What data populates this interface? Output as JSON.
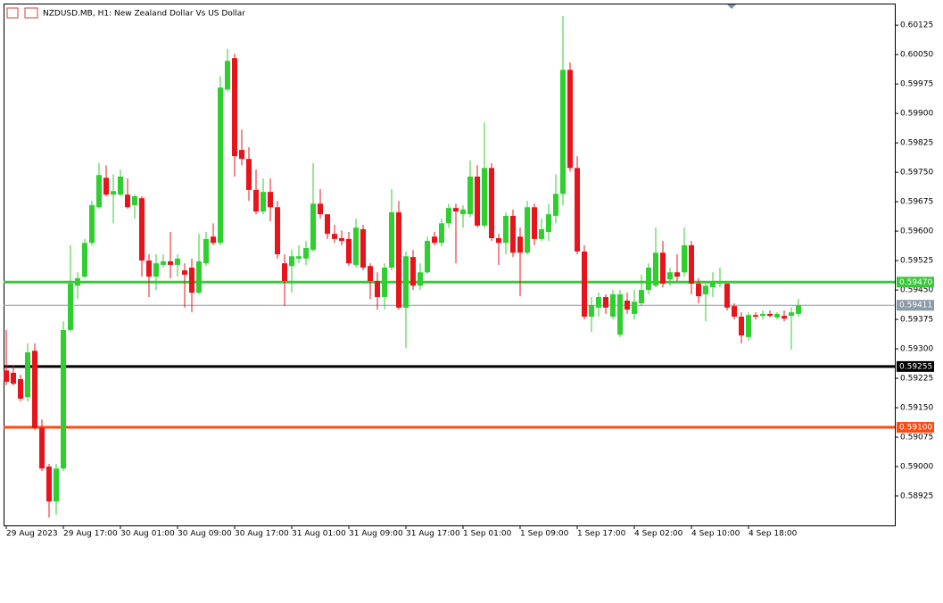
{
  "chart_data": {
    "type": "candlestick",
    "title": "NZDUSD.MB, H1:  New Zealand Dollar Vs US Dollar",
    "up_color": "#2fcf2f",
    "down_color": "#e8141b",
    "categories": [
      "29 Aug 2023",
      null,
      null,
      null,
      null,
      null,
      null,
      null,
      "29 Aug 17:00",
      null,
      null,
      null,
      null,
      null,
      null,
      null,
      "30 Aug 01:00",
      null,
      null,
      null,
      null,
      null,
      null,
      null,
      "30 Aug 09:00",
      null,
      null,
      null,
      null,
      null,
      null,
      null,
      "30 Aug 17:00",
      null,
      null,
      null,
      null,
      null,
      null,
      null,
      "31 Aug 01:00",
      null,
      null,
      null,
      null,
      null,
      null,
      null,
      "31 Aug 09:00",
      null,
      null,
      null,
      null,
      null,
      null,
      null,
      "31 Aug 17:00",
      null,
      null,
      null,
      null,
      null,
      null,
      null,
      "1 Sep 01:00",
      null,
      null,
      null,
      null,
      null,
      null,
      null,
      "1 Sep 09:00",
      null,
      null,
      null,
      null,
      null,
      null,
      null,
      "1 Sep 17:00",
      null,
      null,
      null,
      null,
      null,
      null,
      null,
      "4 Sep 02:00",
      null,
      null,
      null,
      null,
      null,
      null,
      null,
      "4 Sep 10:00",
      null,
      null,
      null,
      null,
      null,
      null,
      null,
      "4 Sep 18:00",
      null,
      null,
      null,
      null,
      null,
      null,
      null
    ],
    "open": [
      0.59245,
      0.59239,
      0.59223,
      0.59177,
      0.59295,
      0.59098,
      0.59,
      0.58911,
      0.58995,
      0.59348,
      0.59461,
      0.59484,
      0.5957,
      0.59661,
      0.59736,
      0.59693,
      0.59693,
      0.59693,
      0.59666,
      0.59684,
      0.59525,
      0.59484,
      0.59514,
      0.59523,
      0.59514,
      0.595,
      0.59507,
      0.59443,
      0.59518,
      0.59586,
      0.5957,
      0.59961,
      0.60041,
      0.59807,
      0.59784,
      0.59705,
      0.5965,
      0.597,
      0.59661,
      0.59518,
      0.59511,
      0.5953,
      0.5953,
      0.59552,
      0.5967,
      0.59643,
      0.59593,
      0.59582,
      0.5958,
      0.59514,
      0.59605,
      0.59511,
      0.59473,
      0.59432,
      0.59507,
      0.59648,
      0.59405,
      0.59534,
      0.59461,
      0.59495,
      0.59586,
      0.5957,
      0.5962,
      0.59659,
      0.59643,
      0.59643,
      0.59739,
      0.59614,
      0.59761,
      0.59582,
      0.5957,
      0.59639,
      0.59586,
      0.59545,
      0.59661,
      0.5958,
      0.59598,
      0.59639,
      0.59695,
      0.60011,
      0.59761,
      0.59548,
      0.59382,
      0.59405,
      0.59432,
      0.59382,
      0.59336,
      0.59423,
      0.59389,
      0.59416,
      0.5945,
      0.59461,
      0.59545,
      0.59477,
      0.59495,
      0.59495,
      0.59564,
      0.59466,
      0.59439,
      0.59457,
      0.59466,
      0.59466,
      0.59409,
      0.59382,
      0.5933,
      0.59386,
      0.59384,
      0.59389,
      0.5938,
      0.59384,
      0.59384,
      0.59389
    ],
    "high": [
      0.59348,
      0.59257,
      0.59234,
      0.59314,
      0.59314,
      0.5912,
      0.59007,
      0.59007,
      0.5937,
      0.59564,
      0.59495,
      0.5958,
      0.59677,
      0.59773,
      0.59768,
      0.59745,
      0.59757,
      0.59734,
      0.59693,
      0.59689,
      0.59541,
      0.59541,
      0.59541,
      0.59598,
      0.59541,
      0.59518,
      0.5953,
      0.59593,
      0.59598,
      0.5962,
      0.59995,
      0.60064,
      0.60052,
      0.59859,
      0.59814,
      0.59757,
      0.59734,
      0.59734,
      0.59677,
      0.59541,
      0.59552,
      0.59564,
      0.59575,
      0.59773,
      0.59707,
      0.59643,
      0.59616,
      0.59602,
      0.59598,
      0.59632,
      0.59616,
      0.59518,
      0.59495,
      0.59518,
      0.59707,
      0.59677,
      0.59548,
      0.59552,
      0.59518,
      0.59586,
      0.59598,
      0.59632,
      0.5967,
      0.5967,
      0.59666,
      0.5978,
      0.59768,
      0.59877,
      0.59773,
      0.59593,
      0.59648,
      0.59655,
      0.59609,
      0.59677,
      0.5967,
      0.59632,
      0.5967,
      0.59745,
      0.60148,
      0.6003,
      0.59791,
      0.59564,
      0.59432,
      0.59443,
      0.59439,
      0.5945,
      0.5945,
      0.59443,
      0.5945,
      0.59489,
      0.59518,
      0.59609,
      0.59575,
      0.59507,
      0.59541,
      0.59609,
      0.59575,
      0.5948,
      0.59466,
      0.59495,
      0.59507,
      0.59466,
      0.59416,
      0.59393,
      0.59393,
      0.59393,
      0.59398,
      0.59398,
      0.59393,
      0.59398,
      0.59405,
      0.59427
    ],
    "low": [
      0.59207,
      0.59207,
      0.59166,
      0.59166,
      0.59093,
      0.58989,
      0.5887,
      0.58877,
      0.58989,
      0.59343,
      0.59427,
      0.5948,
      0.59564,
      0.59657,
      0.59689,
      0.5962,
      0.59689,
      0.59657,
      0.59632,
      0.59484,
      0.59432,
      0.5945,
      0.59507,
      0.5948,
      0.59484,
      0.59405,
      0.59393,
      0.59439,
      0.59511,
      0.59564,
      0.59564,
      0.59957,
      0.59739,
      0.59768,
      0.59677,
      0.59643,
      0.59643,
      0.59625,
      0.5953,
      0.59409,
      0.59443,
      0.59518,
      0.59514,
      0.59548,
      0.59632,
      0.5958,
      0.5957,
      0.59564,
      0.59511,
      0.59507,
      0.595,
      0.59427,
      0.594,
      0.594,
      0.595,
      0.594,
      0.59302,
      0.5945,
      0.5945,
      0.59491,
      0.59564,
      0.59561,
      0.59609,
      0.59518,
      0.59609,
      0.59636,
      0.59609,
      0.59607,
      0.59575,
      0.59514,
      0.59541,
      0.59534,
      0.59434,
      0.59541,
      0.59564,
      0.59575,
      0.59575,
      0.5962,
      0.59666,
      0.59752,
      0.59541,
      0.59375,
      0.59343,
      0.59382,
      0.59389,
      0.59375,
      0.5933,
      0.59389,
      0.59375,
      0.59409,
      0.59439,
      0.59457,
      0.59457,
      0.59461,
      0.59473,
      0.59484,
      0.59439,
      0.59416,
      0.5937,
      0.59432,
      0.59457,
      0.59398,
      0.59375,
      0.59314,
      0.5932,
      0.59375,
      0.59375,
      0.5938,
      0.59375,
      0.5937,
      0.59298,
      0.59382
    ],
    "close": [
      0.59216,
      0.59211,
      0.59173,
      0.59291,
      0.59098,
      0.58995,
      0.58911,
      0.58995,
      0.59348,
      0.59466,
      0.5948,
      0.5957,
      0.59666,
      0.59743,
      0.59693,
      0.59702,
      0.59739,
      0.59661,
      0.59689,
      0.59525,
      0.59484,
      0.59518,
      0.59523,
      0.59514,
      0.5953,
      0.59489,
      0.59443,
      0.59523,
      0.5958,
      0.5957,
      0.59966,
      0.60034,
      0.59791,
      0.59784,
      0.59705,
      0.5965,
      0.597,
      0.59661,
      0.59541,
      0.59473,
      0.59536,
      0.59536,
      0.59557,
      0.5967,
      0.59643,
      0.59593,
      0.5958,
      0.59575,
      0.59518,
      0.59609,
      0.59507,
      0.59473,
      0.59432,
      0.59507,
      0.59648,
      0.59405,
      0.59536,
      0.59461,
      0.59495,
      0.59575,
      0.5957,
      0.5962,
      0.59659,
      0.5965,
      0.59655,
      0.59739,
      0.59614,
      0.59761,
      0.59582,
      0.5957,
      0.59639,
      0.59545,
      0.59545,
      0.59661,
      0.5958,
      0.59605,
      0.59643,
      0.59695,
      0.60011,
      0.59761,
      0.59548,
      0.59382,
      0.59411,
      0.59432,
      0.59405,
      0.59439,
      0.59439,
      0.594,
      0.5942,
      0.5945,
      0.59507,
      0.59545,
      0.59466,
      0.59495,
      0.59484,
      0.59564,
      0.59466,
      0.59434,
      0.59461,
      0.59473,
      0.5947,
      0.59405,
      0.59382,
      0.59334,
      0.59386,
      0.59382,
      0.59389,
      0.59384,
      0.59389,
      0.59377,
      0.59393,
      0.59411
    ],
    "ylim": [
      0.5885,
      0.6018
    ],
    "yticks": [
      0.58925,
      {
        "value": 0.59,
        "label": "0.59000"
      },
      0.59075,
      {
        "value": 0.5915,
        "label": "0.59150"
      },
      0.59225,
      {
        "value": 0.593,
        "label": "0.59300"
      },
      0.59375,
      {
        "value": 0.5945,
        "label": "0.59450"
      },
      0.59525,
      {
        "value": 0.596,
        "label": "0.59600"
      },
      0.59675,
      {
        "value": 0.5975,
        "label": "0.59750"
      },
      0.59825,
      {
        "value": 0.599,
        "label": "0.59900"
      },
      0.59975,
      {
        "value": 0.6005,
        "label": "0.60050"
      },
      0.60125
    ],
    "levels": [
      {
        "value": 0.5947,
        "label": "0.59470",
        "color": "#38c838"
      },
      {
        "value": 0.59411,
        "label": "0.59411",
        "color": "#8c9aa8"
      },
      {
        "value": 0.59255,
        "label": "0.59255",
        "color": "#000000"
      },
      {
        "value": 0.591,
        "label": "0.59100",
        "color": "#ff4a12"
      }
    ]
  }
}
